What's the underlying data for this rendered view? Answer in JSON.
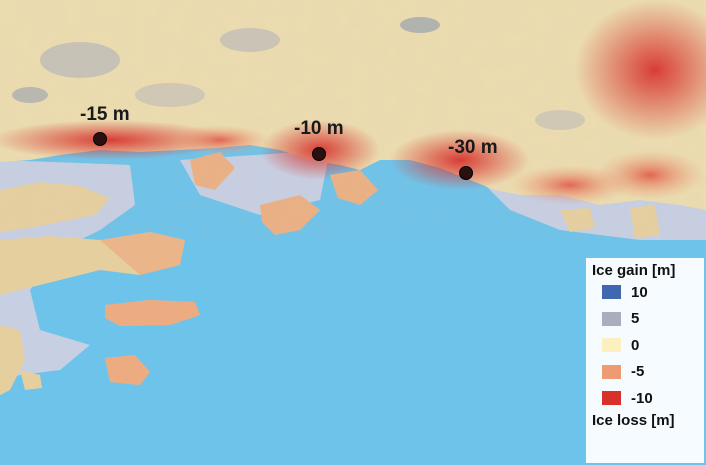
{
  "map": {
    "markers": [
      {
        "label": "-15 m"
      },
      {
        "label": "-10 m"
      },
      {
        "label": "-30 m"
      }
    ],
    "legend": {
      "top_title": "Ice gain [m]",
      "bottom_title": "Ice loss [m]",
      "items": [
        {
          "value": "10",
          "color": "#4068b0"
        },
        {
          "value": "5",
          "color": "#a9adbd"
        },
        {
          "value": "0",
          "color": "#fbf0bf"
        },
        {
          "value": "-5",
          "color": "#ee9b74"
        },
        {
          "value": "-10",
          "color": "#d8312b"
        }
      ]
    },
    "colors": {
      "sea": "#6ec3ea",
      "ice_neutral": "#ecdcb0",
      "ice_loss": "#d8312b",
      "bare_ground": "#c5cde2"
    }
  }
}
